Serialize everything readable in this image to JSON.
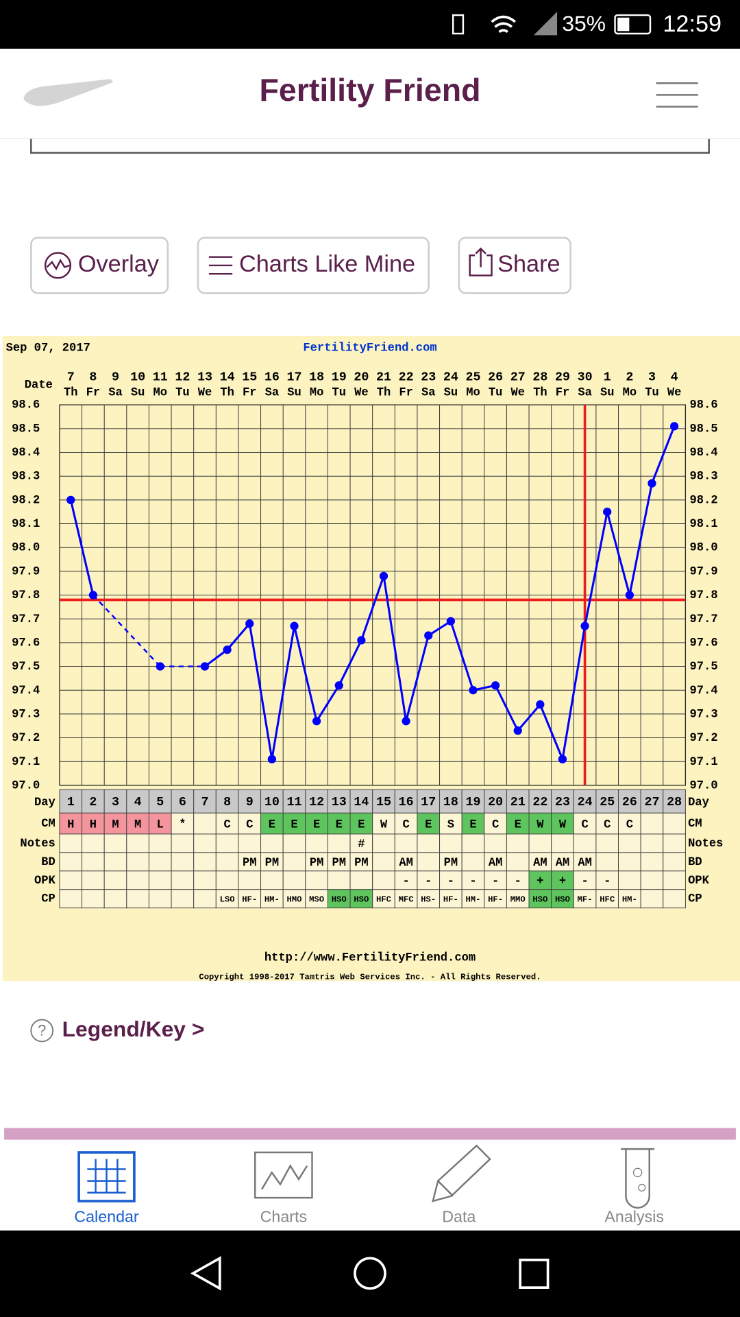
{
  "status_bar": {
    "battery": "35%",
    "time": "12:59"
  },
  "header": {
    "title": "Fertility Friend"
  },
  "buttons": [
    "Overlay",
    "Charts Like Mine",
    "Share"
  ],
  "legend_link": "Legend/Key >",
  "nav": [
    "Calendar",
    "Charts",
    "Data",
    "Analysis"
  ],
  "chart_data": {
    "type": "line",
    "title": "Sep 07, 2017",
    "subtitle": "FertilityFriend.com",
    "x_label": "Date",
    "categories": [
      "7",
      "8",
      "9",
      "10",
      "11",
      "12",
      "13",
      "14",
      "15",
      "16",
      "17",
      "18",
      "19",
      "20",
      "21",
      "22",
      "23",
      "24",
      "25",
      "26",
      "27",
      "28",
      "29",
      "30",
      "1",
      "2",
      "3",
      "4"
    ],
    "weekdays": [
      "Th",
      "Fr",
      "Sa",
      "Su",
      "Mo",
      "Tu",
      "We",
      "Th",
      "Fr",
      "Sa",
      "Su",
      "Mo",
      "Tu",
      "We",
      "Th",
      "Fr",
      "Sa",
      "Su",
      "Mo",
      "Tu",
      "We",
      "Th",
      "Fr",
      "Sa",
      "Su",
      "Mo",
      "Tu",
      "We"
    ],
    "day_label": "Day",
    "cycle_days": [
      1,
      2,
      3,
      4,
      5,
      6,
      7,
      8,
      9,
      10,
      11,
      12,
      13,
      14,
      15,
      16,
      17,
      18,
      19,
      20,
      21,
      22,
      23,
      24,
      25,
      26,
      27,
      28
    ],
    "values": [
      98.2,
      97.8,
      null,
      null,
      97.5,
      null,
      97.5,
      97.57,
      97.68,
      97.11,
      97.67,
      97.27,
      97.42,
      97.61,
      97.88,
      97.27,
      97.63,
      97.69,
      97.4,
      97.42,
      97.23,
      97.34,
      97.11,
      97.67,
      98.15,
      97.8,
      98.27,
      98.51
    ],
    "color": "#0000ff",
    "coverline": 97.78,
    "coverline_color": "#ee1c1c",
    "ovulation_day": 24,
    "ylim": [
      97.0,
      98.6
    ],
    "yticks": [
      {
        "value": 97.0,
        "label": "97.0"
      },
      97.1,
      97.2,
      97.3,
      97.4,
      97.5,
      97.6,
      97.7,
      97.8,
      97.9,
      {
        "value": 98.0,
        "label": "98.0"
      },
      98.1,
      98.2,
      98.3,
      98.4,
      98.5,
      98.6
    ],
    "grid": true,
    "rows": [
      {
        "label": "CM",
        "cells": [
          "H",
          "H",
          "M",
          "M",
          "L",
          "*",
          null,
          "C",
          "C",
          "E",
          "E",
          "E",
          "E",
          "E",
          "W",
          "C",
          "E",
          "S",
          "E",
          "C",
          "E",
          "W",
          "W",
          "C",
          "C",
          "C",
          null,
          null
        ],
        "colors": [
          "#f4949c",
          "#f4949c",
          "#f4949c",
          "#f4949c",
          "#f4949c",
          null,
          null,
          null,
          null,
          "#5ec45e",
          "#5ec45e",
          "#5ec45e",
          "#5ec45e",
          "#5ec45e",
          null,
          null,
          "#5ec45e",
          null,
          "#5ec45e",
          null,
          "#5ec45e",
          "#5ec45e",
          "#5ec45e",
          null,
          null,
          null,
          null,
          null
        ]
      },
      {
        "label": "Notes",
        "cells": [
          null,
          null,
          null,
          null,
          null,
          null,
          null,
          null,
          null,
          null,
          null,
          null,
          null,
          "#",
          null,
          null,
          null,
          null,
          null,
          null,
          null,
          null,
          null,
          null,
          null,
          null,
          null,
          null
        ]
      },
      {
        "label": "BD",
        "cells": [
          null,
          null,
          null,
          null,
          null,
          null,
          null,
          null,
          "PM",
          "PM",
          null,
          "PM",
          "PM",
          "PM",
          null,
          "AM",
          null,
          "PM",
          null,
          "AM",
          null,
          "AM",
          "AM",
          "AM",
          null,
          null,
          null,
          null
        ]
      },
      {
        "label": "OPK",
        "cells": [
          null,
          null,
          null,
          null,
          null,
          null,
          null,
          null,
          null,
          null,
          null,
          null,
          null,
          null,
          null,
          "-",
          "-",
          "-",
          "-",
          "-",
          "-",
          "+",
          "+",
          "-",
          "-",
          null,
          null,
          null
        ],
        "colors": [
          null,
          null,
          null,
          null,
          null,
          null,
          null,
          null,
          null,
          null,
          null,
          null,
          null,
          null,
          null,
          null,
          null,
          null,
          null,
          null,
          null,
          "#5ec45e",
          "#5ec45e",
          null,
          null,
          null,
          null,
          null
        ]
      },
      {
        "label": "CP",
        "cells": [
          null,
          null,
          null,
          null,
          null,
          null,
          null,
          "LSO",
          "HF-",
          "HM-",
          "HMO",
          "MSO",
          "HSO",
          "HSO",
          "HFC",
          "MFC",
          "HS-",
          "HF-",
          "HM-",
          "HF-",
          "MMO",
          "HSO",
          "HSO",
          "MF-",
          "HFC",
          "HM-",
          null,
          null
        ],
        "colors": [
          null,
          null,
          null,
          null,
          null,
          null,
          null,
          null,
          null,
          null,
          null,
          null,
          "#5ec45e",
          "#5ec45e",
          null,
          null,
          null,
          null,
          null,
          null,
          null,
          "#5ec45e",
          "#5ec45e",
          null,
          null,
          null,
          null,
          null
        ]
      }
    ],
    "footer_url": "http://www.FertilityFriend.com",
    "copyright": "Copyright 1998-2017 Tamtris Web Services Inc. - All Rights Reserved."
  }
}
